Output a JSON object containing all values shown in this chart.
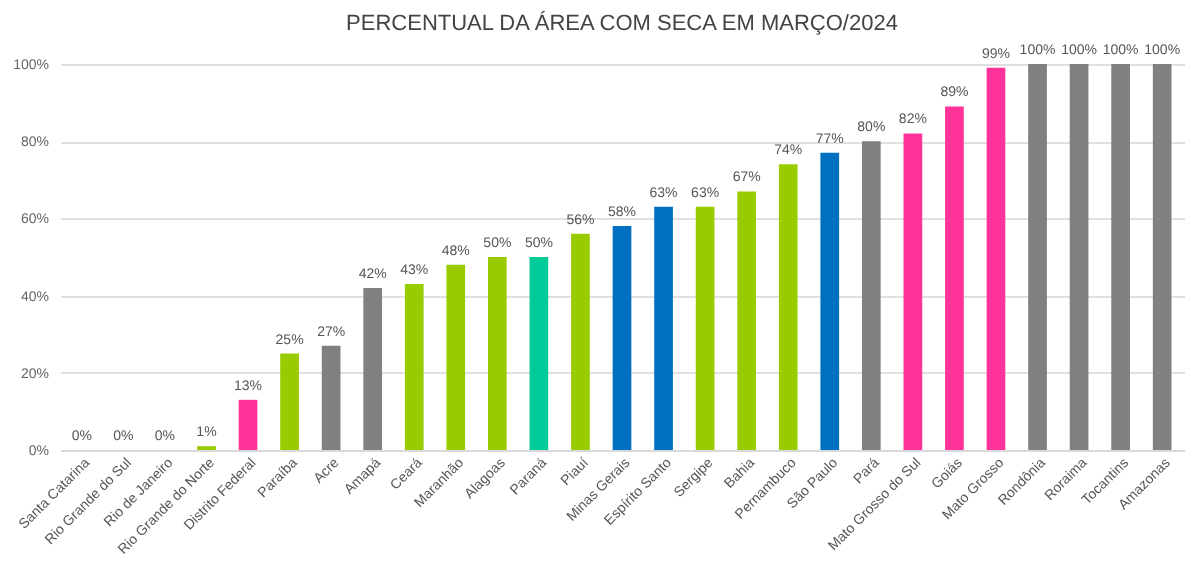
{
  "chart_data": {
    "type": "bar",
    "title": "PERCENTUAL DA ÁREA COM SECA EM MARÇO/2024",
    "categories": [
      "Santa Catarina",
      "Rio Grande do Sul",
      "Rio de Janeiro",
      "Rio Grande do Norte",
      "Distrito Federal",
      "Paraíba",
      "Acre",
      "Amapá",
      "Ceará",
      "Maranhão",
      "Alagoas",
      "Paraná",
      "Piauí",
      "Minas Gerais",
      "Espírito Santo",
      "Sergipe",
      "Bahia",
      "Pernambuco",
      "São Paulo",
      "Pará",
      "Mato Grosso do Sul",
      "Goiás",
      "Mato Grosso",
      "Rondônia",
      "Roraima",
      "Tocantins",
      "Amazonas"
    ],
    "values": [
      0,
      0,
      0,
      1,
      13,
      25,
      27,
      42,
      43,
      48,
      50,
      50,
      56,
      58,
      63,
      63,
      67,
      74,
      77,
      80,
      82,
      89,
      99,
      100,
      100,
      100,
      100
    ],
    "colors": [
      "#00cc99",
      "#00cc99",
      "#0070c0",
      "#99cc00",
      "#ff3399",
      "#99cc00",
      "#808080",
      "#808080",
      "#99cc00",
      "#99cc00",
      "#99cc00",
      "#00cc99",
      "#99cc00",
      "#0070c0",
      "#0070c0",
      "#99cc00",
      "#99cc00",
      "#99cc00",
      "#0070c0",
      "#808080",
      "#ff3399",
      "#ff3399",
      "#ff3399",
      "#808080",
      "#808080",
      "#808080",
      "#808080"
    ],
    "value_labels": [
      "0%",
      "0%",
      "0%",
      "1%",
      "13%",
      "25%",
      "27%",
      "42%",
      "43%",
      "48%",
      "50%",
      "50%",
      "56%",
      "58%",
      "63%",
      "63%",
      "67%",
      "74%",
      "77%",
      "80%",
      "82%",
      "89%",
      "99%",
      "100%",
      "100%",
      "100%",
      "100%"
    ],
    "ylim": [
      0,
      100
    ],
    "yticks": [
      {
        "value": 0,
        "label": "0%"
      },
      {
        "value": 20,
        "label": "20%"
      },
      {
        "value": 40,
        "label": "40%"
      },
      {
        "value": 60,
        "label": "60%"
      },
      {
        "value": 80,
        "label": "80%"
      },
      {
        "value": 100,
        "label": "100%"
      }
    ],
    "grid": "y"
  }
}
